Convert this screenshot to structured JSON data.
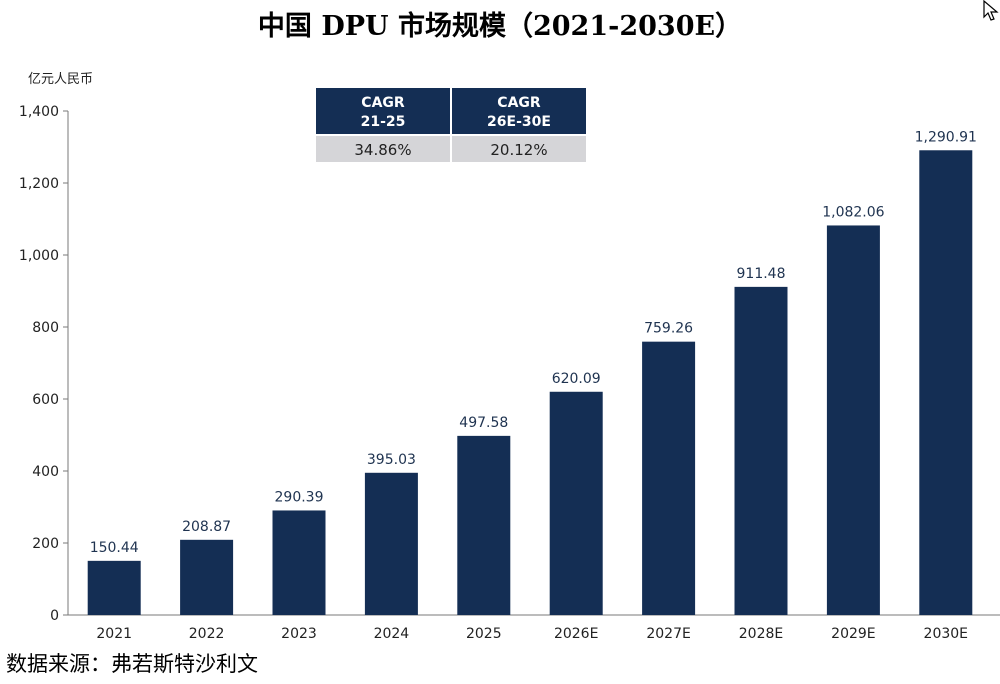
{
  "chart_data": {
    "type": "bar",
    "title": "中国 DPU 市场规模（2021-2030E）",
    "ylabel": "亿元人民币",
    "xlabel": "",
    "categories": [
      "2021",
      "2022",
      "2023",
      "2024",
      "2025",
      "2026E",
      "2027E",
      "2028E",
      "2029E",
      "2030E"
    ],
    "values": [
      150.44,
      208.87,
      290.39,
      395.03,
      497.58,
      620.09,
      759.26,
      911.48,
      1082.06,
      1290.91
    ],
    "value_labels": [
      "150.44",
      "208.87",
      "290.39",
      "395.03",
      "497.58",
      "620.09",
      "759.26",
      "911.48",
      "1,082.06",
      "1,290.91"
    ],
    "ylim": [
      0,
      1400
    ],
    "yticks": [
      0,
      200,
      400,
      600,
      800,
      1000,
      1200,
      1400
    ],
    "ytick_labels": [
      "0",
      "200",
      "400",
      "600",
      "800",
      "1,000",
      "1,200",
      "1,400"
    ],
    "grid": false,
    "bar_color": "#142e54"
  },
  "cagr_table": {
    "columns": [
      {
        "header_line1": "CAGR",
        "header_line2": "21-25",
        "value": "34.86%"
      },
      {
        "header_line1": "CAGR",
        "header_line2": "26E-30E",
        "value": "20.12%"
      }
    ],
    "header_color": "#142e54",
    "value_bg_color": "#d5d5d8"
  },
  "source": "数据来源：弗若斯特沙利文"
}
